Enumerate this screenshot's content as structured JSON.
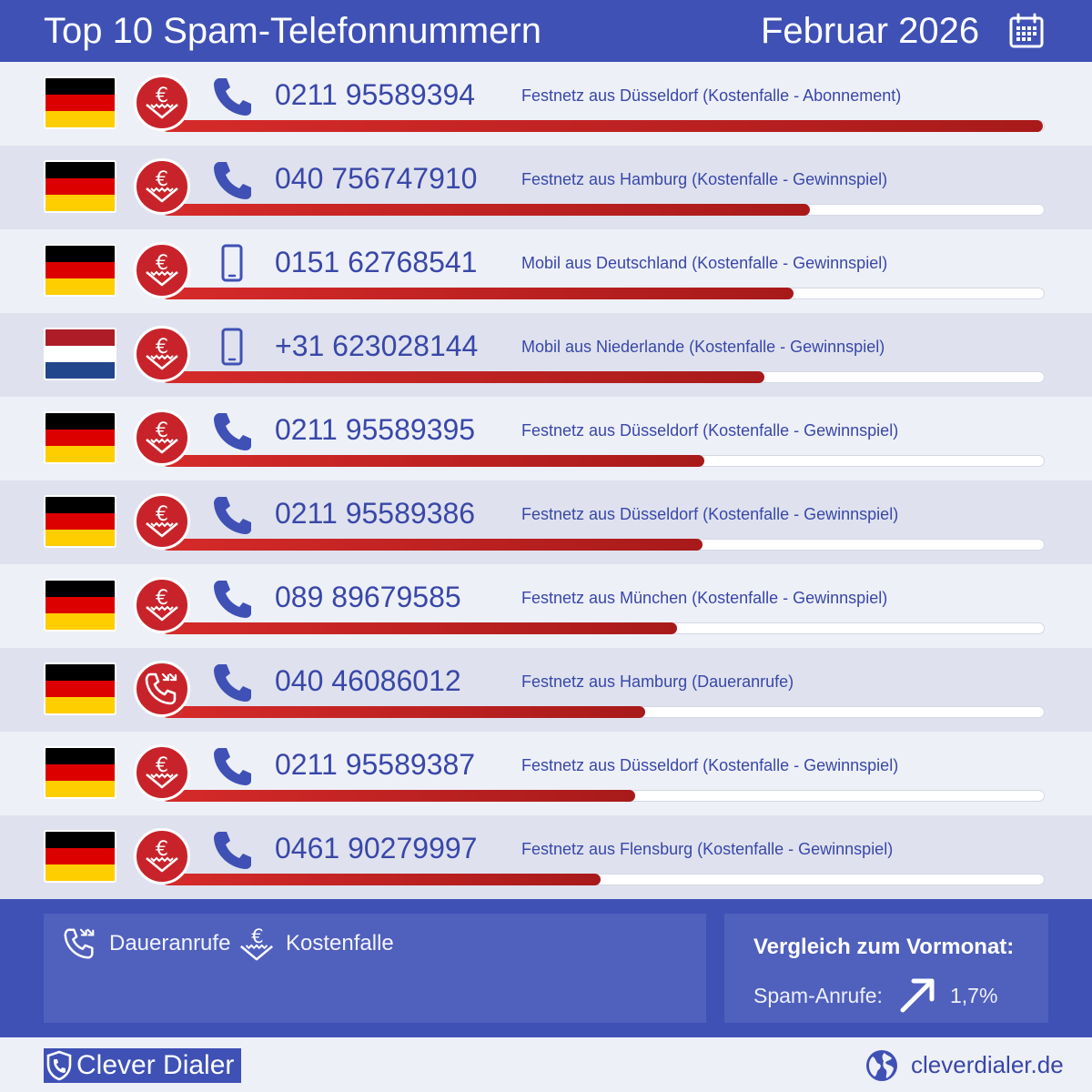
{
  "header": {
    "title": "Top 10 Spam-Telefonnummern",
    "month": "Februar 2026",
    "calendar_icon": "calendar-icon"
  },
  "colors": {
    "brand_blue": "#3f51b5",
    "bar_red": "#c8232a",
    "text_blue": "#3947a8"
  },
  "rows": [
    {
      "flag": "germany",
      "category": "kostenfalle",
      "device": "phone",
      "number": "0211 95589394",
      "desc": "Festnetz aus Düsseldorf (Kostenfalle - Abonnement)",
      "level": 1.0
    },
    {
      "flag": "germany",
      "category": "kostenfalle",
      "device": "phone",
      "number": "040 756747910",
      "desc": "Festnetz aus Hamburg (Kostenfalle - Gewinnspiel)",
      "level": 0.736
    },
    {
      "flag": "germany",
      "category": "kostenfalle",
      "device": "mobile",
      "number": "0151 62768541",
      "desc": "Mobil aus Deutschland (Kostenfalle - Gewinnspiel)",
      "level": 0.717
    },
    {
      "flag": "netherlands",
      "category": "kostenfalle",
      "device": "mobile",
      "number": "+31 623028144",
      "desc": "Mobil aus Niederlande (Kostenfalle - Gewinnspiel)",
      "level": 0.684
    },
    {
      "flag": "germany",
      "category": "kostenfalle",
      "device": "phone",
      "number": "0211 95589395",
      "desc": "Festnetz aus Düsseldorf (Kostenfalle - Gewinnspiel)",
      "level": 0.616
    },
    {
      "flag": "germany",
      "category": "kostenfalle",
      "device": "phone",
      "number": "0211 95589386",
      "desc": "Festnetz aus Düsseldorf (Kostenfalle - Gewinnspiel)",
      "level": 0.614
    },
    {
      "flag": "germany",
      "category": "kostenfalle",
      "device": "phone",
      "number": "089 89679585",
      "desc": "Festnetz aus München (Kostenfalle - Gewinnspiel)",
      "level": 0.585
    },
    {
      "flag": "germany",
      "category": "daueranrufe",
      "device": "phone",
      "number": "040 46086012",
      "desc": "Festnetz aus Hamburg (Daueranrufe)",
      "level": 0.549
    },
    {
      "flag": "germany",
      "category": "kostenfalle",
      "device": "phone",
      "number": "0211 95589387",
      "desc": "Festnetz aus Düsseldorf (Kostenfalle - Gewinnspiel)",
      "level": 0.537
    },
    {
      "flag": "germany",
      "category": "kostenfalle",
      "device": "phone",
      "number": "0461 90279997",
      "desc": "Festnetz aus Flensburg (Kostenfalle - Gewinnspiel)",
      "level": 0.498
    }
  ],
  "legend": {
    "daueranrufe_label": "Daueranrufe",
    "kostenfalle_label": "Kostenfalle"
  },
  "comparison": {
    "heading": "Vergleich zum Vormonat:",
    "key": "Spam-Anrufe:",
    "trend_icon": "arrow-up-right-icon",
    "value": "1,7%"
  },
  "footer": {
    "brand": "Clever Dialer",
    "site": "cleverdialer.de"
  }
}
